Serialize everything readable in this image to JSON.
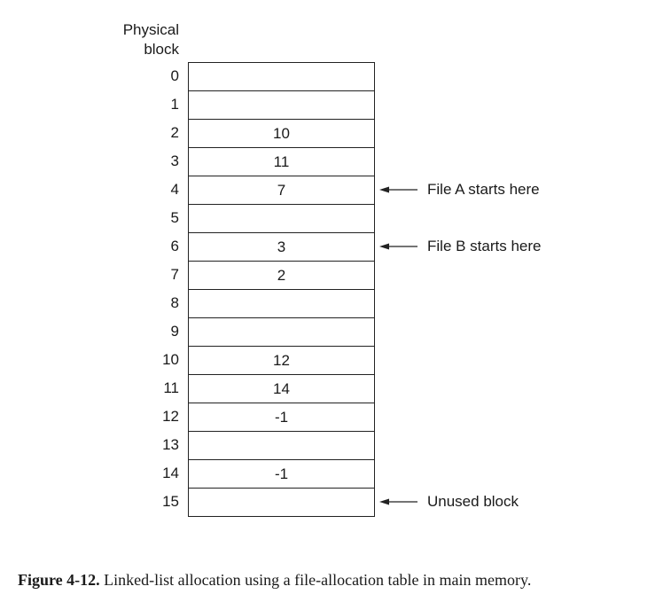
{
  "header": {
    "line1": "Physical",
    "line2": "block"
  },
  "rows": [
    {
      "index": "0",
      "value": "",
      "annotation": ""
    },
    {
      "index": "1",
      "value": "",
      "annotation": ""
    },
    {
      "index": "2",
      "value": "10",
      "annotation": ""
    },
    {
      "index": "3",
      "value": "11",
      "annotation": ""
    },
    {
      "index": "4",
      "value": "7",
      "annotation": "File A starts here"
    },
    {
      "index": "5",
      "value": "",
      "annotation": ""
    },
    {
      "index": "6",
      "value": "3",
      "annotation": "File B starts here"
    },
    {
      "index": "7",
      "value": "2",
      "annotation": ""
    },
    {
      "index": "8",
      "value": "",
      "annotation": ""
    },
    {
      "index": "9",
      "value": "",
      "annotation": ""
    },
    {
      "index": "10",
      "value": "12",
      "annotation": ""
    },
    {
      "index": "11",
      "value": "14",
      "annotation": ""
    },
    {
      "index": "12",
      "value": "-1",
      "annotation": ""
    },
    {
      "index": "13",
      "value": "",
      "annotation": ""
    },
    {
      "index": "14",
      "value": "-1",
      "annotation": ""
    },
    {
      "index": "15",
      "value": "",
      "annotation": "Unused block"
    }
  ],
  "caption": {
    "label": "Figure 4-12.",
    "text": "Linked-list allocation using a file-allocation table in main memory."
  }
}
